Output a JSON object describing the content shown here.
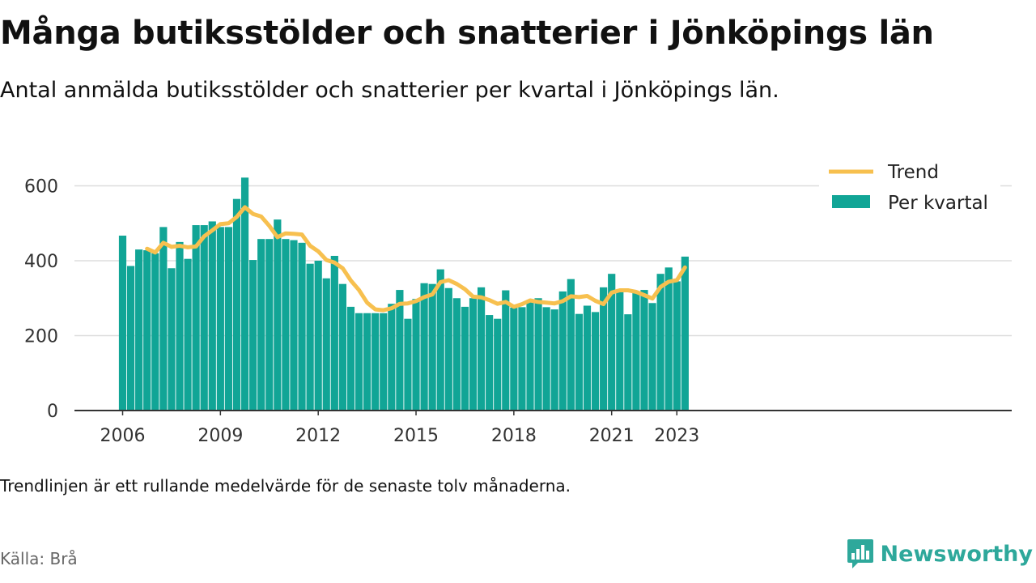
{
  "title": "Många butiksstölder och snatterier i Jönköpings län",
  "subtitle": "Antal anmälda butiksstölder och snatterier per kvartal i Jönköpings län.",
  "footnote": "Trendlinjen är ett rullande medelvärde för de senaste tolv månaderna.",
  "source": "Källa: Brå",
  "brand": "Newsworthy",
  "colors": {
    "bars": "#11a596",
    "trend": "#f7c04f",
    "grid": "#dddddd",
    "axis": "#333333",
    "brand": "#2ea89b"
  },
  "chart_data": {
    "type": "bar",
    "x_start": "2006 Q1",
    "xticks": [
      "2006",
      "2009",
      "2012",
      "2015",
      "2018",
      "2021",
      "2023"
    ],
    "yticks": [
      "0",
      "200",
      "400",
      "600"
    ],
    "ylim": [
      0,
      700
    ],
    "grid": true,
    "legend_position": "top-right",
    "series": [
      {
        "name": "Per kvartal",
        "kind": "bar",
        "values": [
          467,
          386,
          430,
          428,
          420,
          490,
          380,
          450,
          405,
          495,
          495,
          505,
          490,
          490,
          565,
          622,
          402,
          458,
          458,
          510,
          458,
          455,
          448,
          392,
          400,
          353,
          413,
          338,
          277,
          260,
          260,
          260,
          260,
          285,
          322,
          245,
          298,
          340,
          338,
          377,
          327,
          300,
          277,
          300,
          329,
          255,
          245,
          321,
          275,
          276,
          292,
          300,
          276,
          270,
          318,
          351,
          258,
          280,
          263,
          329,
          365,
          320,
          257,
          315,
          322,
          287,
          365,
          382,
          345,
          411
        ]
      },
      {
        "name": "Trend",
        "kind": "line",
        "values": [
          null,
          null,
          null,
          432,
          422,
          448,
          437,
          440,
          436,
          438,
          465,
          481,
          498,
          500,
          517,
          543,
          525,
          518,
          493,
          463,
          473,
          472,
          470,
          440,
          425,
          402,
          395,
          380,
          347,
          322,
          288,
          270,
          268,
          273,
          285,
          286,
          292,
          303,
          310,
          343,
          348,
          338,
          324,
          304,
          302,
          295,
          285,
          290,
          277,
          284,
          294,
          290,
          288,
          286,
          292,
          305,
          303,
          306,
          293,
          284,
          315,
          321,
          321,
          317,
          308,
          299,
          330,
          344,
          348,
          382
        ]
      }
    ]
  }
}
